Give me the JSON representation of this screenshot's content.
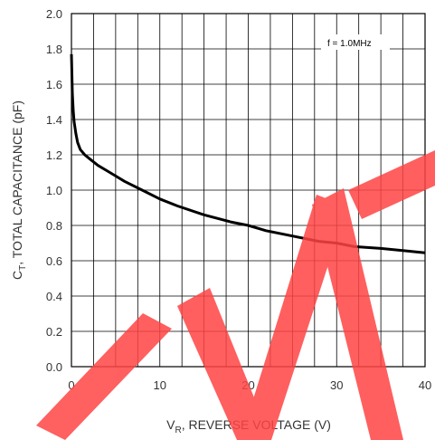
{
  "chart_data": {
    "type": "line",
    "xlabel": {
      "main": "V",
      "sub": "R",
      "rest": ", REVERSE VOLTAGE (V)"
    },
    "ylabel": {
      "main": "C",
      "sub": "T",
      "rest": ", TOTAL CAPACITANCE (pF)"
    },
    "annotation": "f = 1.0MHz",
    "xlim": [
      0,
      40
    ],
    "ylim": [
      0,
      2.0
    ],
    "x_ticks": [
      "0",
      "10",
      "20",
      "30",
      "40"
    ],
    "y_ticks": [
      "0.0",
      "0.2",
      "0.4",
      "0.6",
      "0.8",
      "1.0",
      "1.2",
      "1.4",
      "1.6",
      "1.8",
      "2.0"
    ],
    "x_minor_step": 2.5,
    "y_minor_step": 0.2,
    "grid": true,
    "series": [
      {
        "color": "#000000",
        "x": [
          0.0,
          0.1,
          0.2,
          0.3,
          0.5,
          0.7,
          1.0,
          1.5,
          2.0,
          3.0,
          4.0,
          5.0,
          6.0,
          8.0,
          10.0,
          12.0,
          15.0,
          18.0,
          20.0,
          22.0,
          25.0,
          28.0,
          30.0,
          32.0,
          35.0,
          38.0,
          40.0
        ],
        "y": [
          1.77,
          1.55,
          1.45,
          1.39,
          1.32,
          1.27,
          1.23,
          1.2,
          1.18,
          1.14,
          1.11,
          1.08,
          1.05,
          1.0,
          0.95,
          0.91,
          0.86,
          0.82,
          0.8,
          0.77,
          0.74,
          0.71,
          0.7,
          0.68,
          0.67,
          0.655,
          0.645
        ]
      }
    ]
  },
  "watermark": "EMT",
  "watermark_color": "#ff4444"
}
